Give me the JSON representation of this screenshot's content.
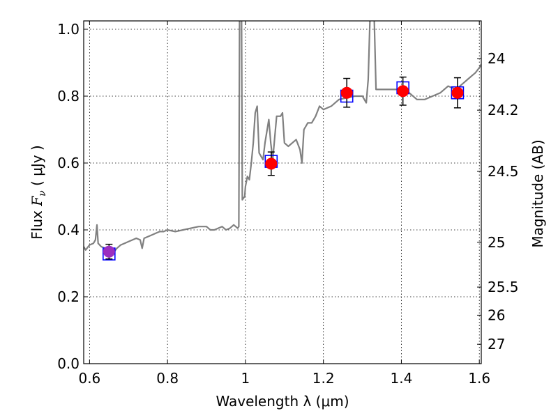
{
  "chart_data": {
    "type": "line",
    "xlabel": "Wavelength  λ (μm)",
    "ylabel_left": {
      "prefix": "Flux  ",
      "symbol": "F",
      "subscript": "ν",
      "unit": "  ( μJy )"
    },
    "ylabel_right": "Magnitude (AB)",
    "xlim": [
      0.585,
      1.605
    ],
    "ylim": [
      0.0,
      1.025
    ],
    "grid": true,
    "x_ticks": [
      {
        "value": 0.6,
        "label": "0.6"
      },
      {
        "value": 0.8,
        "label": "0.8"
      },
      {
        "value": 1.0,
        "label": "1"
      },
      {
        "value": 1.2,
        "label": "1.2"
      },
      {
        "value": 1.4,
        "label": "1.4"
      },
      {
        "value": 1.6,
        "label": "1.6"
      }
    ],
    "y_ticks": [
      {
        "value": 0.0,
        "label": "0.0"
      },
      {
        "value": 0.2,
        "label": "0.2"
      },
      {
        "value": 0.4,
        "label": "0.4"
      },
      {
        "value": 0.6,
        "label": "0.6"
      },
      {
        "value": 0.8,
        "label": "0.8"
      },
      {
        "value": 1.0,
        "label": "1.0"
      }
    ],
    "right_ticks": [
      {
        "flux": 0.912,
        "label": "24"
      },
      {
        "flux": 0.758,
        "label": "24.2"
      },
      {
        "flux": 0.575,
        "label": "24.5"
      },
      {
        "flux": 0.363,
        "label": "25"
      },
      {
        "flux": 0.229,
        "label": "25.5"
      },
      {
        "flux": 0.145,
        "label": "26"
      },
      {
        "flux": 0.058,
        "label": "27"
      }
    ],
    "series": [
      {
        "kind": "spectrum",
        "color": "#808080",
        "points": [
          [
            0.585,
            0.35
          ],
          [
            0.59,
            0.34
          ],
          [
            0.6,
            0.355
          ],
          [
            0.61,
            0.36
          ],
          [
            0.615,
            0.37
          ],
          [
            0.619,
            0.415
          ],
          [
            0.622,
            0.36
          ],
          [
            0.63,
            0.35
          ],
          [
            0.64,
            0.345
          ],
          [
            0.65,
            0.34
          ],
          [
            0.66,
            0.33
          ],
          [
            0.67,
            0.345
          ],
          [
            0.68,
            0.355
          ],
          [
            0.69,
            0.36
          ],
          [
            0.7,
            0.365
          ],
          [
            0.71,
            0.37
          ],
          [
            0.72,
            0.375
          ],
          [
            0.73,
            0.37
          ],
          [
            0.735,
            0.345
          ],
          [
            0.74,
            0.375
          ],
          [
            0.75,
            0.38
          ],
          [
            0.76,
            0.385
          ],
          [
            0.77,
            0.39
          ],
          [
            0.78,
            0.395
          ],
          [
            0.79,
            0.395
          ],
          [
            0.8,
            0.4
          ],
          [
            0.82,
            0.395
          ],
          [
            0.84,
            0.4
          ],
          [
            0.86,
            0.405
          ],
          [
            0.88,
            0.41
          ],
          [
            0.9,
            0.41
          ],
          [
            0.91,
            0.4
          ],
          [
            0.92,
            0.4
          ],
          [
            0.94,
            0.41
          ],
          [
            0.95,
            0.4
          ],
          [
            0.96,
            0.405
          ],
          [
            0.97,
            0.415
          ],
          [
            0.98,
            0.405
          ],
          [
            0.983,
            0.41
          ],
          [
            0.985,
            1.05
          ],
          [
            0.99,
            1.05
          ],
          [
            0.992,
            0.49
          ],
          [
            0.998,
            0.5
          ],
          [
            1.0,
            0.53
          ],
          [
            1.005,
            0.56
          ],
          [
            1.01,
            0.55
          ],
          [
            1.015,
            0.6
          ],
          [
            1.02,
            0.66
          ],
          [
            1.025,
            0.75
          ],
          [
            1.03,
            0.77
          ],
          [
            1.035,
            0.63
          ],
          [
            1.04,
            0.62
          ],
          [
            1.045,
            0.61
          ],
          [
            1.05,
            0.66
          ],
          [
            1.06,
            0.73
          ],
          [
            1.065,
            0.66
          ],
          [
            1.07,
            0.61
          ],
          [
            1.08,
            0.74
          ],
          [
            1.09,
            0.74
          ],
          [
            1.095,
            0.75
          ],
          [
            1.1,
            0.66
          ],
          [
            1.11,
            0.65
          ],
          [
            1.12,
            0.66
          ],
          [
            1.13,
            0.67
          ],
          [
            1.14,
            0.64
          ],
          [
            1.145,
            0.6
          ],
          [
            1.15,
            0.7
          ],
          [
            1.16,
            0.72
          ],
          [
            1.17,
            0.72
          ],
          [
            1.18,
            0.74
          ],
          [
            1.19,
            0.77
          ],
          [
            1.2,
            0.76
          ],
          [
            1.22,
            0.77
          ],
          [
            1.24,
            0.79
          ],
          [
            1.26,
            0.795
          ],
          [
            1.28,
            0.8
          ],
          [
            1.3,
            0.8
          ],
          [
            1.31,
            0.78
          ],
          [
            1.315,
            0.85
          ],
          [
            1.32,
            1.05
          ],
          [
            1.33,
            1.05
          ],
          [
            1.335,
            0.82
          ],
          [
            1.34,
            0.82
          ],
          [
            1.36,
            0.82
          ],
          [
            1.38,
            0.82
          ],
          [
            1.4,
            0.82
          ],
          [
            1.42,
            0.81
          ],
          [
            1.44,
            0.79
          ],
          [
            1.46,
            0.79
          ],
          [
            1.48,
            0.8
          ],
          [
            1.5,
            0.81
          ],
          [
            1.52,
            0.83
          ],
          [
            1.54,
            0.82
          ],
          [
            1.56,
            0.84
          ],
          [
            1.57,
            0.85
          ],
          [
            1.58,
            0.86
          ],
          [
            1.59,
            0.87
          ],
          [
            1.6,
            0.885
          ],
          [
            1.605,
            0.895
          ]
        ]
      }
    ],
    "photometry": [
      {
        "x": 0.65,
        "y": 0.335,
        "yerr": 0.022,
        "color": "#9b2fc0"
      },
      {
        "x": 1.066,
        "y": 0.598,
        "yerr": 0.035,
        "color": "#ff0000"
      },
      {
        "x": 1.26,
        "y": 0.81,
        "yerr": 0.043,
        "color": "#ff0000"
      },
      {
        "x": 1.404,
        "y": 0.815,
        "yerr": 0.042,
        "color": "#ff0000"
      },
      {
        "x": 1.544,
        "y": 0.81,
        "yerr": 0.045,
        "color": "#ff0000"
      }
    ],
    "model_points": [
      {
        "x": 0.65,
        "y": 0.328,
        "color": "#0000ff"
      },
      {
        "x": 1.066,
        "y": 0.605,
        "color": "#0000ff"
      },
      {
        "x": 1.26,
        "y": 0.8,
        "color": "#0000ff"
      },
      {
        "x": 1.404,
        "y": 0.825,
        "color": "#0000ff"
      },
      {
        "x": 1.544,
        "y": 0.81,
        "color": "#0000ff"
      }
    ]
  }
}
